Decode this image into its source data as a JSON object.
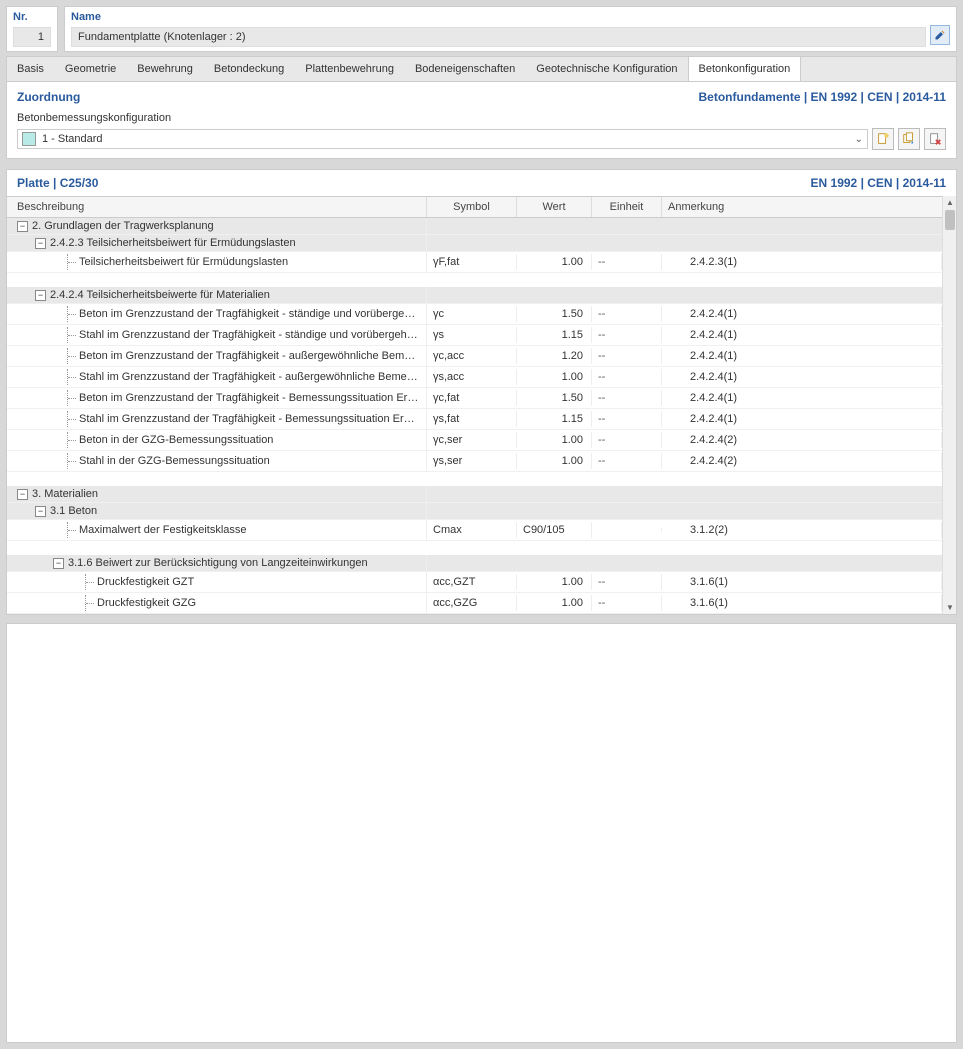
{
  "header": {
    "nr_label": "Nr.",
    "nr_value": "1",
    "name_label": "Name",
    "name_value": "Fundamentplatte (Knotenlager : 2)"
  },
  "tabs": [
    "Basis",
    "Geometrie",
    "Bewehrung",
    "Betondeckung",
    "Plattenbewehrung",
    "Bodeneigenschaften",
    "Geotechnische Konfiguration",
    "Betonkonfiguration"
  ],
  "active_tab": 7,
  "panel1": {
    "title": "Zuordnung",
    "right": "Betonfundamente | EN 1992 | CEN | 2014-11",
    "sub": "Betonbemessungskonfiguration",
    "dropdown": "1 - Standard"
  },
  "panel2": {
    "title": "Platte | C25/30",
    "right": "EN 1992 | CEN | 2014-11",
    "columns": {
      "desc": "Beschreibung",
      "sym": "Symbol",
      "val": "Wert",
      "unit": "Einheit",
      "note": "Anmerkung"
    }
  },
  "rows": [
    {
      "type": "group",
      "level": 0,
      "text": "2. Grundlagen der Tragwerksplanung"
    },
    {
      "type": "group",
      "level": 1,
      "text": "2.4.2.3 Teilsicherheitsbeiwert für Ermüdungslasten"
    },
    {
      "type": "data",
      "level": 2,
      "desc": "Teilsicherheitsbeiwert für Ermüdungslasten",
      "sym": "γF,fat",
      "val": "1.00",
      "unit": "--",
      "note": "2.4.2.3(1)"
    },
    {
      "type": "spacer"
    },
    {
      "type": "group",
      "level": 1,
      "text": "2.4.2.4 Teilsicherheitsbeiwerte für Materialien"
    },
    {
      "type": "data",
      "level": 2,
      "desc": "Beton im Grenzzustand der Tragfähigkeit - ständige und vorübergehende Be...",
      "sym": "γc",
      "val": "1.50",
      "unit": "--",
      "note": "2.4.2.4(1)"
    },
    {
      "type": "data",
      "level": 2,
      "desc": "Stahl im Grenzzustand der Tragfähigkeit - ständige und vorübergehende Be...",
      "sym": "γs",
      "val": "1.15",
      "unit": "--",
      "note": "2.4.2.4(1)"
    },
    {
      "type": "data",
      "level": 2,
      "desc": "Beton im Grenzzustand der Tragfähigkeit - außergewöhnliche Bemessungssit...",
      "sym": "γc,acc",
      "val": "1.20",
      "unit": "--",
      "note": "2.4.2.4(1)"
    },
    {
      "type": "data",
      "level": 2,
      "desc": "Stahl im Grenzzustand der Tragfähigkeit - außergewöhnliche Bemessungssitu...",
      "sym": "γs,acc",
      "val": "1.00",
      "unit": "--",
      "note": "2.4.2.4(1)"
    },
    {
      "type": "data",
      "level": 2,
      "desc": "Beton im Grenzzustand der Tragfähigkeit - Bemessungssituation Ermüdung",
      "sym": "γc,fat",
      "val": "1.50",
      "unit": "--",
      "note": "2.4.2.4(1)"
    },
    {
      "type": "data",
      "level": 2,
      "desc": "Stahl im Grenzzustand der Tragfähigkeit - Bemessungssituation Ermüdung",
      "sym": "γs,fat",
      "val": "1.15",
      "unit": "--",
      "note": "2.4.2.4(1)"
    },
    {
      "type": "data",
      "level": 2,
      "desc": "Beton in der GZG-Bemessungssituation",
      "sym": "γc,ser",
      "val": "1.00",
      "unit": "--",
      "note": "2.4.2.4(2)"
    },
    {
      "type": "data",
      "level": 2,
      "desc": "Stahl in der GZG-Bemessungssituation",
      "sym": "γs,ser",
      "val": "1.00",
      "unit": "--",
      "note": "2.4.2.4(2)"
    },
    {
      "type": "spacer"
    },
    {
      "type": "group",
      "level": 0,
      "text": "3. Materialien"
    },
    {
      "type": "group",
      "level": 1,
      "text": "3.1 Beton"
    },
    {
      "type": "data",
      "level": 2,
      "desc": "Maximalwert der Festigkeitsklasse",
      "sym": "Cmax",
      "val": "C90/105",
      "unit": "",
      "note": "3.1.2(2)",
      "valLeft": true
    },
    {
      "type": "spacer"
    },
    {
      "type": "group",
      "level": 2,
      "text": "3.1.6 Beiwert zur Berücksichtigung von Langzeiteinwirkungen"
    },
    {
      "type": "data",
      "level": 3,
      "desc": "Druckfestigkeit GZT",
      "sym": "αcc,GZT",
      "val": "1.00",
      "unit": "--",
      "note": "3.1.6(1)"
    },
    {
      "type": "data",
      "level": 3,
      "desc": "Druckfestigkeit GZG",
      "sym": "αcc,GZG",
      "val": "1.00",
      "unit": "--",
      "note": "3.1.6(1)"
    }
  ]
}
